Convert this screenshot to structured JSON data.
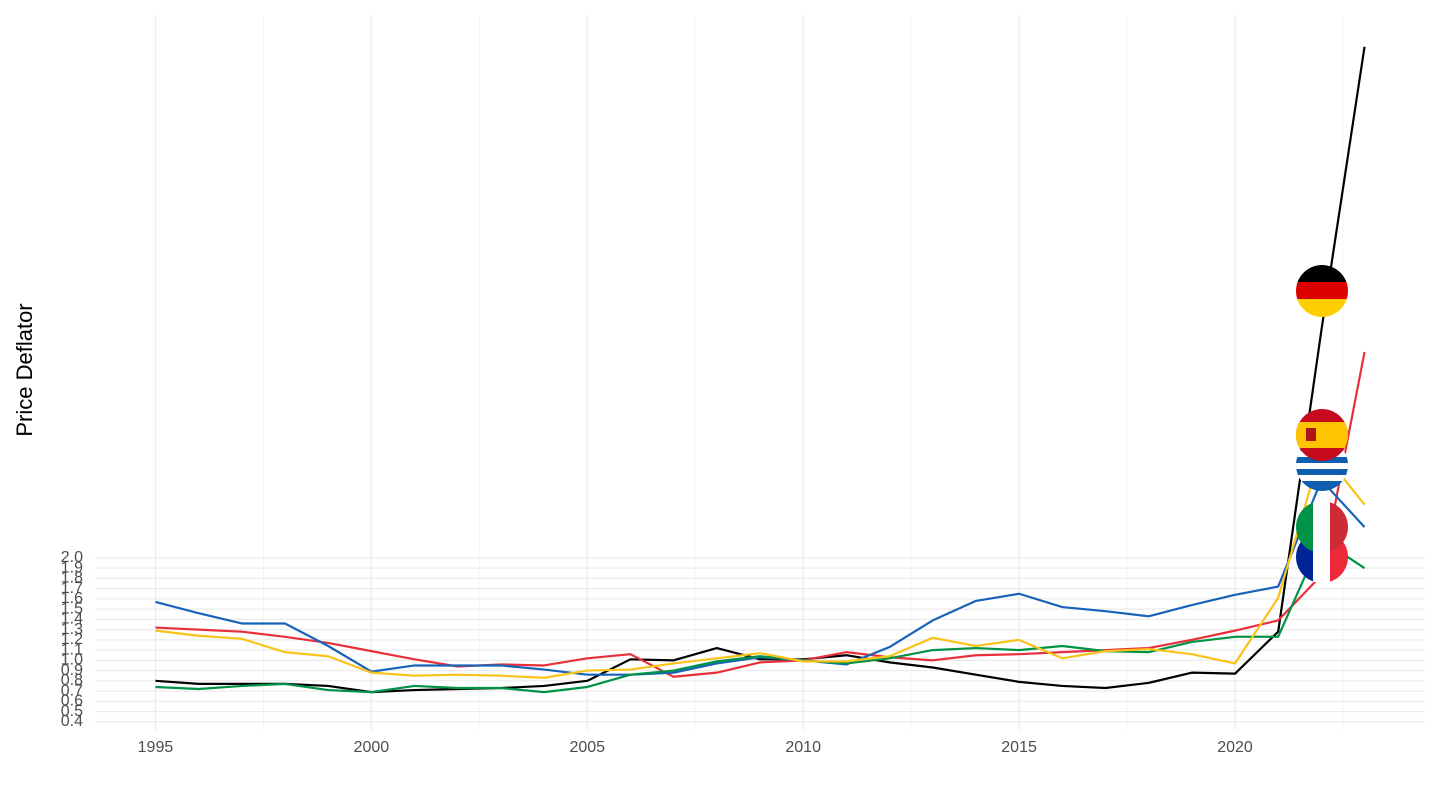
{
  "chart_data": {
    "type": "line",
    "y_label": "Price Deflator",
    "x": [
      1995,
      1996,
      1997,
      1998,
      1999,
      2000,
      2001,
      2002,
      2003,
      2004,
      2005,
      2006,
      2007,
      2008,
      2009,
      2010,
      2011,
      2012,
      2013,
      2014,
      2015,
      2016,
      2017,
      2018,
      2019,
      2020,
      2021,
      2022,
      2023
    ],
    "xlim": [
      1993.6,
      2024.4
    ],
    "xticks": [
      1995,
      2000,
      2005,
      2010,
      2015,
      2020
    ],
    "ylim": [
      0.32,
      7.3
    ],
    "yticks": [
      0.4,
      0.5,
      0.6,
      0.7,
      0.8,
      0.9,
      {
        "value": 1,
        "label": "1.0"
      },
      1.1,
      1.2,
      1.3,
      1.4,
      1.5,
      1.6,
      1.7,
      1.8,
      1.9,
      {
        "value": 2,
        "label": "2.0"
      }
    ],
    "grid": true,
    "series": [
      {
        "color": "#000000",
        "values": [
          0.8,
          0.77,
          0.77,
          0.77,
          0.75,
          0.69,
          0.71,
          0.72,
          0.73,
          0.75,
          0.8,
          1.01,
          1.0,
          1.12,
          1.01,
          1.01,
          1.05,
          0.98,
          0.93,
          0.86,
          0.79,
          0.75,
          0.73,
          0.78,
          0.88,
          0.87,
          1.28,
          4.22,
          6.99
        ]
      },
      {
        "color": "#e8303a",
        "values": [
          1.32,
          1.3,
          1.28,
          1.23,
          1.17,
          1.09,
          1.01,
          0.94,
          0.96,
          0.95,
          1.02,
          1.06,
          0.84,
          0.88,
          0.98,
          1.0,
          1.08,
          1.03,
          1.0,
          1.05,
          1.06,
          1.08,
          1.1,
          1.12,
          1.2,
          1.29,
          1.39,
          1.83,
          4.01
        ]
      },
      {
        "color": "#1763b8",
        "values": [
          1.57,
          1.46,
          1.36,
          1.36,
          1.14,
          0.89,
          0.95,
          0.95,
          0.95,
          0.91,
          0.86,
          0.86,
          0.88,
          0.97,
          1.03,
          1.0,
          0.96,
          1.13,
          1.39,
          1.58,
          1.65,
          1.52,
          1.48,
          1.43,
          1.54,
          1.64,
          1.72,
          2.76,
          2.3
        ]
      },
      {
        "color": "#009246",
        "values": [
          0.74,
          0.72,
          0.75,
          0.77,
          0.71,
          0.69,
          0.75,
          0.73,
          0.73,
          0.69,
          0.74,
          0.86,
          0.9,
          0.99,
          1.04,
          1.0,
          0.97,
          1.02,
          1.1,
          1.12,
          1.1,
          1.14,
          1.09,
          1.08,
          1.18,
          1.23,
          1.23,
          2.18,
          1.9
        ]
      },
      {
        "color": "#f9c31a",
        "values": [
          1.29,
          1.24,
          1.21,
          1.08,
          1.04,
          0.88,
          0.85,
          0.86,
          0.85,
          0.83,
          0.9,
          0.91,
          0.97,
          1.02,
          1.07,
          0.99,
          0.99,
          1.04,
          1.22,
          1.14,
          1.2,
          1.02,
          1.09,
          1.11,
          1.06,
          0.97,
          1.61,
          3.05,
          2.52
        ]
      }
    ]
  }
}
